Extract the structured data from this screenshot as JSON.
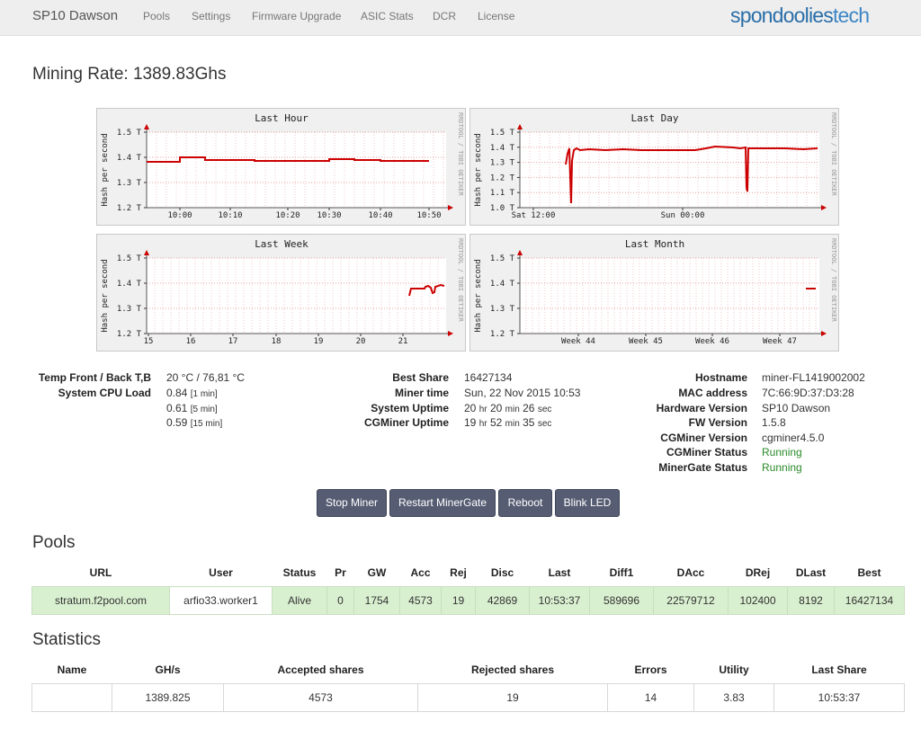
{
  "nav": {
    "brand": "SP10 Dawson",
    "items": [
      "Pools",
      "Settings",
      "Firmware Upgrade",
      "ASIC Stats",
      "DCR",
      "License"
    ],
    "logo_part1": "spondoolies",
    "logo_part2": "tech"
  },
  "mining_rate": "Mining Rate: 1389.83Ghs",
  "charts": [
    {
      "title": "Last Hour",
      "ylabel": "Hash per second",
      "side_label": "RRDTOOL / TOBI OETIKER",
      "y_ticks": [
        "1.5 T",
        "1.4 T",
        "1.3 T",
        "1.2 T"
      ],
      "x_ticks": [
        "10:00",
        "10:10",
        "10:20",
        "10:30",
        "10:40",
        "10:50"
      ]
    },
    {
      "title": "Last Day",
      "ylabel": "Hash per second",
      "side_label": "RRDTOOL / TOBI OETIKER",
      "y_ticks": [
        "1.5 T",
        "1.4 T",
        "1.3 T",
        "1.2 T",
        "1.1 T",
        "1.0 T"
      ],
      "x_ticks": [
        "Sat 12:00",
        "Sun 00:00"
      ]
    },
    {
      "title": "Last Week",
      "ylabel": "Hash per second",
      "side_label": "RRDTOOL / TOBI OETIKER",
      "y_ticks": [
        "1.5 T",
        "1.4 T",
        "1.3 T",
        "1.2 T"
      ],
      "x_ticks": [
        "15",
        "16",
        "17",
        "18",
        "19",
        "20",
        "21"
      ]
    },
    {
      "title": "Last Month",
      "ylabel": "Hash per second",
      "side_label": "RRDTOOL / TOBI OETIKER",
      "y_ticks": [
        "1.5 T",
        "1.4 T",
        "1.3 T",
        "1.2 T"
      ],
      "x_ticks": [
        "Week 44",
        "Week 45",
        "Week 46",
        "Week 47"
      ]
    }
  ],
  "info": {
    "temp_label": "Temp Front / Back T,B",
    "temp_value": "20 °C / 76,81 °C",
    "cpu_label": "System CPU Load",
    "cpu_loads": [
      {
        "value": "0.84",
        "period": "[1 min]"
      },
      {
        "value": "0.61",
        "period": "[5 min]"
      },
      {
        "value": "0.59",
        "period": "[15 min]"
      }
    ],
    "best_share_label": "Best Share",
    "best_share": "16427134",
    "miner_time_label": "Miner time",
    "miner_time": "Sun, 22 Nov 2015 10:53",
    "sys_uptime_label": "System Uptime",
    "sys_uptime": {
      "h": "20",
      "m": "20",
      "s": "26"
    },
    "cg_uptime_label": "CGMiner Uptime",
    "cg_uptime": {
      "h": "19",
      "m": "52",
      "s": "35"
    },
    "unit_hr": "hr",
    "unit_min": "min",
    "unit_sec": "sec",
    "hostname_label": "Hostname",
    "hostname": "miner-FL1419002002",
    "mac_label": "MAC address",
    "mac": "7C:66:9D:37:D3:28",
    "hw_label": "Hardware Version",
    "hw": "SP10 Dawson",
    "fw_label": "FW Version",
    "fw": "1.5.8",
    "cgver_label": "CGMiner Version",
    "cgver": "cgminer4.5.0",
    "cgstatus_label": "CGMiner Status",
    "cgstatus": "Running",
    "mgstatus_label": "MinerGate Status",
    "mgstatus": "Running",
    "status_color": "#2a8a2a"
  },
  "buttons": {
    "stop": "Stop Miner",
    "restart": "Restart MinerGate",
    "reboot": "Reboot",
    "blink": "Blink LED"
  },
  "pools": {
    "title": "Pools",
    "headers": [
      "URL",
      "User",
      "Status",
      "Pr",
      "GW",
      "Acc",
      "Rej",
      "Disc",
      "Last",
      "Diff1",
      "DAcc",
      "DRej",
      "DLast",
      "Best"
    ],
    "rows": [
      [
        "stratum.f2pool.com",
        "arfio33.worker1",
        "Alive",
        "0",
        "1754",
        "4573",
        "19",
        "42869",
        "10:53:37",
        "589696",
        "22579712",
        "102400",
        "8192",
        "16427134"
      ]
    ]
  },
  "statistics": {
    "title": "Statistics",
    "headers": [
      "Name",
      "GH/s",
      "Accepted shares",
      "Rejected shares",
      "Errors",
      "Utility",
      "Last Share"
    ],
    "rows": [
      [
        "",
        "1389.825",
        "4573",
        "19",
        "14",
        "3.83",
        "10:53:37"
      ]
    ]
  },
  "colors": {
    "line": "#cc0000",
    "button_bg": "#565d73",
    "pool_row_bg": "#d9f0d0"
  }
}
